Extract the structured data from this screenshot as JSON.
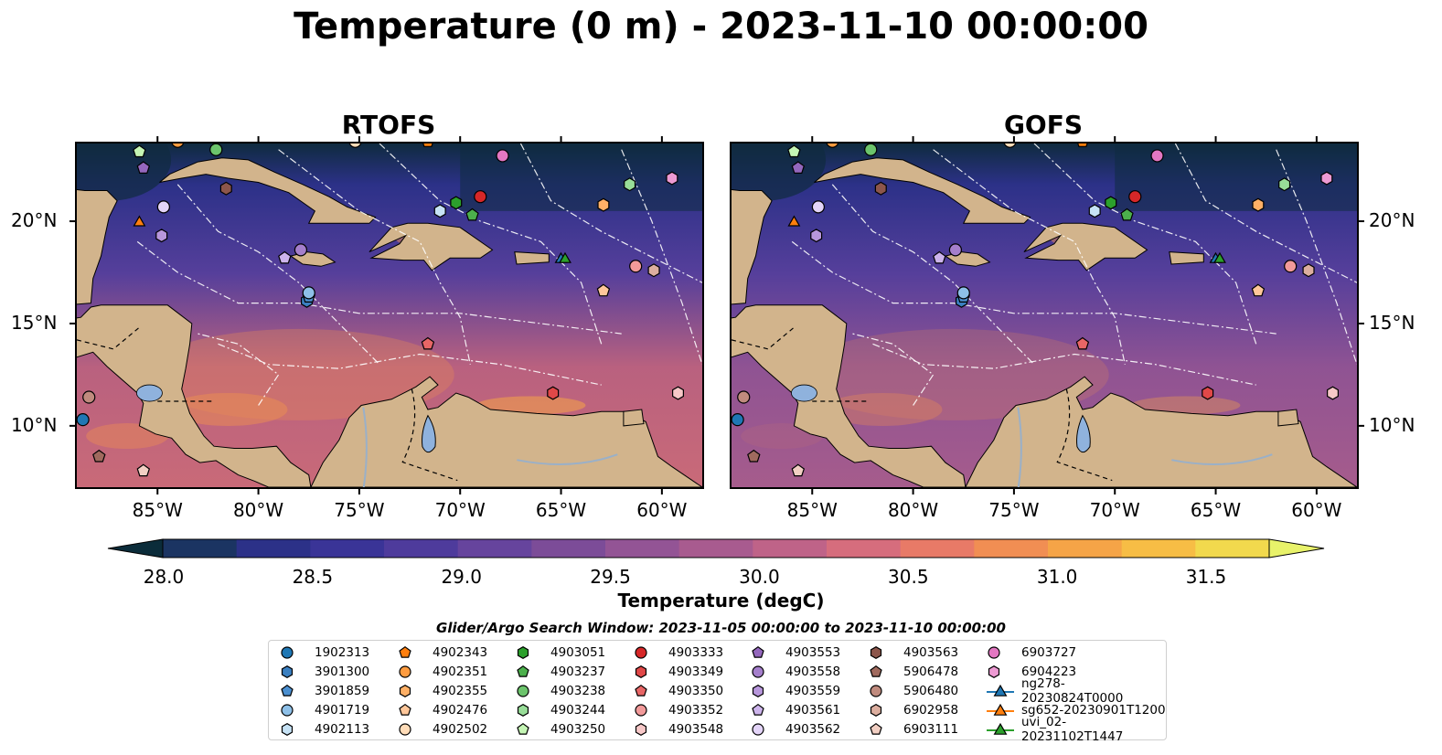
{
  "title": "Temperature (0 m) - 2023-11-10 00:00:00",
  "panels": [
    {
      "title": "RTOFS"
    },
    {
      "title": "GOFS"
    }
  ],
  "lon_labels": [
    "85°W",
    "80°W",
    "75°W",
    "70°W",
    "65°W",
    "60°W"
  ],
  "lat_labels": [
    "20°N",
    "15°N",
    "10°N"
  ],
  "colorbar": {
    "label": "Temperature (degC)",
    "ticks": [
      "28.0",
      "28.5",
      "29.0",
      "29.5",
      "30.0",
      "30.5",
      "31.0",
      "31.5"
    ],
    "range": [
      28.0,
      31.5
    ],
    "colors": [
      "#0b2c3a",
      "#1b3462",
      "#2c3188",
      "#3a3497",
      "#4e3b9c",
      "#66449d",
      "#7c4c98",
      "#935495",
      "#a85b8f",
      "#bf6388",
      "#d66d7d",
      "#e87a67",
      "#f18e53",
      "#f5a447",
      "#f7bd45",
      "#f2d94d",
      "#e8f26a"
    ]
  },
  "map_colors": {
    "land": "#d2b48c",
    "deep_water": "#0f2b3f",
    "mid_water": "#563f9b",
    "warm_water": "#b9617f",
    "hot_water": "#ea8c54",
    "lake": "#8fb2dd",
    "river": "#9ab0c8"
  },
  "legend": {
    "title": "Glider/Argo Search Window: 2023-11-05 00:00:00 to 2023-11-10 00:00:00",
    "items": [
      {
        "label": "1902313",
        "marker": "circle",
        "color": "#1f77b4"
      },
      {
        "label": "3901300",
        "marker": "hexagon",
        "color": "#3a7fc0"
      },
      {
        "label": "3901859",
        "marker": "pentagon",
        "color": "#4b8fd0"
      },
      {
        "label": "4901719",
        "marker": "circle",
        "color": "#8ec0e8"
      },
      {
        "label": "4902113",
        "marker": "hexagon",
        "color": "#c6e2f5"
      },
      {
        "label": "4902343",
        "marker": "pentagon",
        "color": "#ff7f0e"
      },
      {
        "label": "4902351",
        "marker": "circle",
        "color": "#ff9c40"
      },
      {
        "label": "4902355",
        "marker": "hexagon",
        "color": "#ffb066"
      },
      {
        "label": "4902476",
        "marker": "pentagon",
        "color": "#ffc79a"
      },
      {
        "label": "4902502",
        "marker": "circle",
        "color": "#ffdcb8"
      },
      {
        "label": "4903051",
        "marker": "hexagon",
        "color": "#2ca02c"
      },
      {
        "label": "4903237",
        "marker": "pentagon",
        "color": "#4cb04c"
      },
      {
        "label": "4903238",
        "marker": "circle",
        "color": "#6cc46c"
      },
      {
        "label": "4903244",
        "marker": "hexagon",
        "color": "#98dd98"
      },
      {
        "label": "4903250",
        "marker": "pentagon",
        "color": "#c4f5b4"
      },
      {
        "label": "4903333",
        "marker": "circle",
        "color": "#d62728"
      },
      {
        "label": "4903349",
        "marker": "hexagon",
        "color": "#e04848"
      },
      {
        "label": "4903350",
        "marker": "pentagon",
        "color": "#e86666"
      },
      {
        "label": "4903352",
        "marker": "circle",
        "color": "#f29a9a"
      },
      {
        "label": "4903548",
        "marker": "hexagon",
        "color": "#f7c8c8"
      },
      {
        "label": "4903553",
        "marker": "pentagon",
        "color": "#9467bd"
      },
      {
        "label": "4903558",
        "marker": "circle",
        "color": "#a57fcc"
      },
      {
        "label": "4903559",
        "marker": "hexagon",
        "color": "#b897dc"
      },
      {
        "label": "4903561",
        "marker": "pentagon",
        "color": "#cdb4ec"
      },
      {
        "label": "4903562",
        "marker": "circle",
        "color": "#e3d4f8"
      },
      {
        "label": "4903563",
        "marker": "hexagon",
        "color": "#8c564b"
      },
      {
        "label": "5906478",
        "marker": "pentagon",
        "color": "#a06a5e"
      },
      {
        "label": "5906480",
        "marker": "circle",
        "color": "#c08b7e"
      },
      {
        "label": "6902958",
        "marker": "hexagon",
        "color": "#dcae9f"
      },
      {
        "label": "6903111",
        "marker": "pentagon",
        "color": "#f2cfc3"
      },
      {
        "label": "6903727",
        "marker": "circle",
        "color": "#e377c2"
      },
      {
        "label": "6904223",
        "marker": "hexagon",
        "color": "#ed9ad3"
      },
      {
        "label": "ng278-20230824T0000",
        "marker": "triangle-line",
        "color": "#1f77b4"
      },
      {
        "label": "sg652-20230901T1200",
        "marker": "triangle-line",
        "color": "#ff7f0e"
      },
      {
        "label": "uvi_02-20231102T1447",
        "marker": "triangle-line",
        "color": "#2ca02c"
      }
    ]
  },
  "observations": [
    {
      "id": "1902313",
      "lon": -88.7,
      "lat": 10.3
    },
    {
      "id": "3901300",
      "lon": -77.6,
      "lat": 16.1
    },
    {
      "id": "3901859",
      "lon": -77.5,
      "lat": 16.3
    },
    {
      "id": "4901719",
      "lon": -77.5,
      "lat": 16.5
    },
    {
      "id": "4902113",
      "lon": -71.0,
      "lat": 20.5
    },
    {
      "id": "4902343",
      "lon": -71.6,
      "lat": 23.9
    },
    {
      "id": "4902351",
      "lon": -84.0,
      "lat": 23.9
    },
    {
      "id": "4902355",
      "lon": -62.9,
      "lat": 20.8
    },
    {
      "id": "4902476",
      "lon": -62.9,
      "lat": 16.6
    },
    {
      "id": "4902502",
      "lon": -75.2,
      "lat": 23.9
    },
    {
      "id": "4903051",
      "lon": -70.2,
      "lat": 20.9
    },
    {
      "id": "4903237",
      "lon": -69.4,
      "lat": 20.3
    },
    {
      "id": "4903238",
      "lon": -82.1,
      "lat": 23.5
    },
    {
      "id": "4903244",
      "lon": -61.6,
      "lat": 21.8
    },
    {
      "id": "4903250",
      "lon": -85.9,
      "lat": 23.4
    },
    {
      "id": "4903333",
      "lon": -69.0,
      "lat": 21.2
    },
    {
      "id": "4903349",
      "lon": -65.4,
      "lat": 11.6
    },
    {
      "id": "4903350",
      "lon": -71.6,
      "lat": 14.0
    },
    {
      "id": "4903352",
      "lon": -61.3,
      "lat": 17.8
    },
    {
      "id": "4903548",
      "lon": -59.2,
      "lat": 11.6
    },
    {
      "id": "4903553",
      "lon": -85.7,
      "lat": 22.6
    },
    {
      "id": "4903558",
      "lon": -77.9,
      "lat": 18.6
    },
    {
      "id": "4903559",
      "lon": -84.8,
      "lat": 19.3
    },
    {
      "id": "4903561",
      "lon": -78.7,
      "lat": 18.2
    },
    {
      "id": "4903562",
      "lon": -84.7,
      "lat": 20.7
    },
    {
      "id": "4903563",
      "lon": -81.6,
      "lat": 21.6
    },
    {
      "id": "5906478",
      "lon": -87.9,
      "lat": 8.5
    },
    {
      "id": "5906480",
      "lon": -88.4,
      "lat": 11.4
    },
    {
      "id": "6902958",
      "lon": -60.4,
      "lat": 17.6
    },
    {
      "id": "6903111",
      "lon": -85.7,
      "lat": 7.8
    },
    {
      "id": "6903727",
      "lon": -67.9,
      "lat": 23.2
    },
    {
      "id": "6904223",
      "lon": -59.5,
      "lat": 22.1
    },
    {
      "id": "ng278-20230824T0000",
      "lon": -65.0,
      "lat": 18.2
    },
    {
      "id": "sg652-20230901T1200",
      "lon": -85.9,
      "lat": 20.0
    },
    {
      "id": "uvi_02-20231102T1447",
      "lon": -64.8,
      "lat": 18.2
    }
  ]
}
